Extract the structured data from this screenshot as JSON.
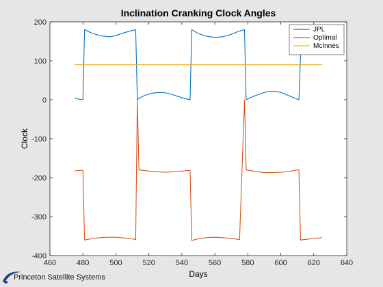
{
  "chart_data": {
    "type": "line",
    "title": "Inclination Cranking Clock Angles",
    "xlabel": "Days",
    "ylabel": "Clock",
    "xlim": [
      460,
      640
    ],
    "ylim": [
      -400,
      200
    ],
    "xticks": [
      460,
      480,
      500,
      520,
      540,
      560,
      580,
      600,
      620,
      640
    ],
    "yticks": [
      -400,
      -300,
      -200,
      -100,
      0,
      100,
      200
    ],
    "grid": false,
    "legend_position": "top-right",
    "series": [
      {
        "name": "JPL",
        "color": "#0072BD",
        "x": [
          475,
          478,
          480,
          481,
          485,
          490,
          495,
          497,
          500,
          505,
          510,
          512,
          513,
          514,
          518,
          522,
          526,
          530,
          534,
          538,
          542,
          545,
          546,
          550,
          555,
          560,
          565,
          570,
          574,
          578,
          579,
          583,
          588,
          592,
          596,
          600,
          604,
          608,
          611,
          612
        ],
        "y": [
          5,
          1,
          0,
          180,
          172,
          165,
          162,
          162,
          165,
          172,
          178,
          180,
          0,
          4,
          12,
          17,
          19,
          18,
          14,
          8,
          3,
          0,
          180,
          170,
          163,
          160,
          162,
          168,
          175,
          180,
          0,
          8,
          16,
          21,
          22,
          19,
          12,
          5,
          0,
          115
        ]
      },
      {
        "name": "Optimal",
        "color": "#D95319",
        "x": [
          475,
          478,
          480,
          481,
          485,
          490,
          495,
          498,
          500,
          505,
          510,
          512,
          513,
          514,
          520,
          525,
          530,
          535,
          540,
          545,
          546,
          550,
          555,
          560,
          565,
          570,
          575,
          578,
          579,
          585,
          590,
          595,
          600,
          605,
          610,
          611,
          612,
          620,
          625
        ],
        "y": [
          -183,
          -181,
          -181,
          -360,
          -357,
          -354,
          -353,
          -353,
          -353,
          -355,
          -357,
          -359,
          0,
          -180,
          -183,
          -185,
          -186,
          -185,
          -183,
          -181,
          -361,
          -357,
          -354,
          -353,
          -354,
          -356,
          -359,
          0,
          -180,
          -184,
          -187,
          -187,
          -186,
          -184,
          -180,
          -181,
          -360,
          -356,
          -354
        ]
      },
      {
        "name": "McInnes",
        "color": "#EDB120",
        "x": [
          475,
          625
        ],
        "y": [
          90,
          90
        ]
      }
    ]
  },
  "footer": {
    "logo_text": "Princeton Satellite Systems"
  }
}
